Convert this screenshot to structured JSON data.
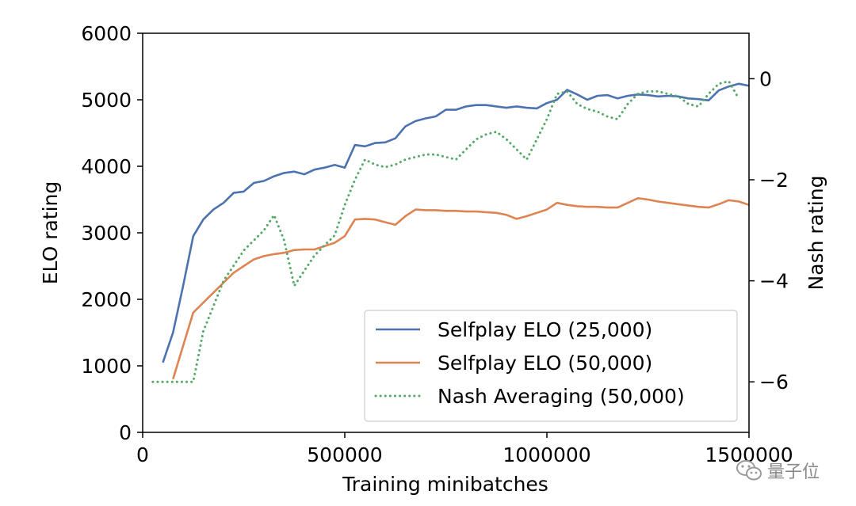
{
  "watermark": {
    "text": "量子位",
    "icon": "wechat-icon"
  },
  "chart_data": {
    "type": "line",
    "xlabel": "Training minibatches",
    "ylabel": "ELO rating",
    "y2label": "Nash rating",
    "xlim": [
      0,
      1500000
    ],
    "ylim": [
      0,
      6000
    ],
    "y2lim": [
      -7.0,
      0.9
    ],
    "x_ticks": [
      0,
      500000,
      1000000,
      1500000
    ],
    "x_tick_labels": [
      "0",
      "500000",
      "1000000",
      "1500000"
    ],
    "y_ticks": [
      0,
      1000,
      2000,
      3000,
      4000,
      5000,
      6000
    ],
    "y_tick_labels": [
      "0",
      "1000",
      "2000",
      "3000",
      "4000",
      "5000",
      "6000"
    ],
    "y2_ticks": [
      -6,
      -4,
      -2,
      0
    ],
    "y2_tick_labels": [
      "−6",
      "−4",
      "−2",
      "0"
    ],
    "grid": false,
    "legend_position": "lower-right",
    "series": [
      {
        "name": "Selfplay ELO (25,000)",
        "axis": "left",
        "color": "#4c72b0",
        "style": "solid",
        "x": [
          50000,
          75000,
          100000,
          125000,
          150000,
          175000,
          200000,
          225000,
          250000,
          275000,
          300000,
          325000,
          350000,
          375000,
          400000,
          425000,
          450000,
          475000,
          500000,
          525000,
          550000,
          575000,
          600000,
          625000,
          650000,
          675000,
          700000,
          725000,
          750000,
          775000,
          800000,
          825000,
          850000,
          875000,
          900000,
          925000,
          950000,
          975000,
          1000000,
          1025000,
          1050000,
          1075000,
          1100000,
          1125000,
          1150000,
          1175000,
          1200000,
          1225000,
          1250000,
          1275000,
          1300000,
          1325000,
          1350000,
          1375000,
          1400000,
          1425000,
          1450000,
          1475000,
          1500000
        ],
        "y": [
          1050,
          1500,
          2200,
          2950,
          3200,
          3350,
          3450,
          3600,
          3620,
          3750,
          3780,
          3850,
          3900,
          3920,
          3880,
          3950,
          3980,
          4020,
          3980,
          4320,
          4300,
          4350,
          4360,
          4420,
          4600,
          4680,
          4720,
          4750,
          4850,
          4850,
          4900,
          4920,
          4920,
          4900,
          4880,
          4900,
          4880,
          4870,
          4950,
          5000,
          5150,
          5080,
          5000,
          5060,
          5070,
          5020,
          5060,
          5080,
          5070,
          5050,
          5060,
          5050,
          5020,
          5010,
          4990,
          5140,
          5200,
          5240,
          5210
        ]
      },
      {
        "name": "Selfplay ELO (50,000)",
        "axis": "left",
        "color": "#dd8452",
        "style": "solid",
        "x": [
          75000,
          100000,
          125000,
          150000,
          175000,
          200000,
          225000,
          250000,
          275000,
          300000,
          325000,
          350000,
          375000,
          400000,
          425000,
          450000,
          475000,
          500000,
          525000,
          550000,
          575000,
          600000,
          625000,
          650000,
          675000,
          700000,
          725000,
          750000,
          775000,
          800000,
          825000,
          850000,
          875000,
          900000,
          925000,
          950000,
          975000,
          1000000,
          1025000,
          1050000,
          1075000,
          1100000,
          1125000,
          1150000,
          1175000,
          1200000,
          1225000,
          1250000,
          1275000,
          1300000,
          1325000,
          1350000,
          1375000,
          1400000,
          1425000,
          1450000,
          1475000,
          1500000
        ],
        "y": [
          800,
          1300,
          1800,
          1950,
          2100,
          2250,
          2400,
          2500,
          2600,
          2650,
          2680,
          2700,
          2740,
          2750,
          2750,
          2800,
          2850,
          2950,
          3200,
          3210,
          3200,
          3160,
          3120,
          3250,
          3350,
          3340,
          3340,
          3330,
          3330,
          3320,
          3320,
          3310,
          3300,
          3270,
          3210,
          3250,
          3300,
          3350,
          3450,
          3420,
          3400,
          3390,
          3390,
          3380,
          3380,
          3450,
          3520,
          3500,
          3470,
          3450,
          3430,
          3410,
          3390,
          3380,
          3430,
          3490,
          3470,
          3420
        ]
      },
      {
        "name": "Nash Averaging (50,000)",
        "axis": "right",
        "color": "#55a868",
        "style": "dotted",
        "x": [
          25000,
          50000,
          75000,
          100000,
          125000,
          150000,
          175000,
          200000,
          225000,
          250000,
          275000,
          300000,
          325000,
          350000,
          375000,
          400000,
          425000,
          450000,
          475000,
          500000,
          525000,
          550000,
          575000,
          600000,
          625000,
          650000,
          675000,
          700000,
          725000,
          750000,
          775000,
          800000,
          825000,
          850000,
          875000,
          900000,
          925000,
          950000,
          975000,
          1000000,
          1025000,
          1050000,
          1075000,
          1100000,
          1125000,
          1150000,
          1175000,
          1200000,
          1225000,
          1250000,
          1275000,
          1300000,
          1325000,
          1350000,
          1375000,
          1400000,
          1425000,
          1450000,
          1475000
        ],
        "y": [
          -6.0,
          -6.0,
          -6.0,
          -6.0,
          -6.0,
          -5.0,
          -4.5,
          -4.0,
          -3.7,
          -3.4,
          -3.2,
          -3.0,
          -2.7,
          -3.2,
          -4.1,
          -3.8,
          -3.5,
          -3.3,
          -3.1,
          -2.5,
          -2.0,
          -1.6,
          -1.7,
          -1.75,
          -1.7,
          -1.6,
          -1.55,
          -1.5,
          -1.5,
          -1.55,
          -1.6,
          -1.4,
          -1.2,
          -1.1,
          -1.05,
          -1.2,
          -1.4,
          -1.6,
          -1.2,
          -0.8,
          -0.3,
          -0.25,
          -0.5,
          -0.6,
          -0.65,
          -0.75,
          -0.8,
          -0.5,
          -0.3,
          -0.25,
          -0.25,
          -0.3,
          -0.35,
          -0.5,
          -0.55,
          -0.3,
          -0.1,
          -0.05,
          -0.4
        ]
      }
    ]
  }
}
